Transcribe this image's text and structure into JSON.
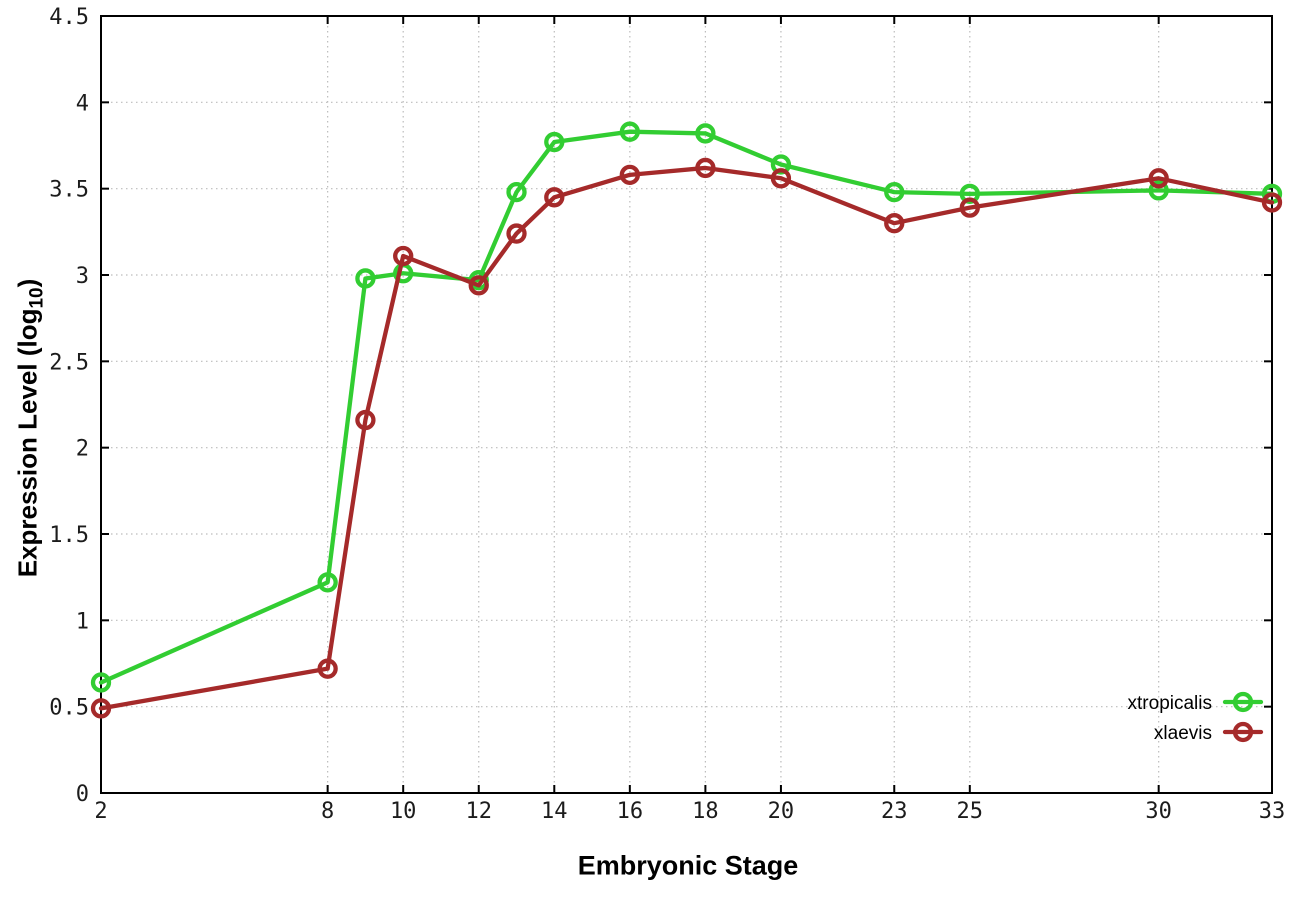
{
  "chart_data": {
    "type": "line",
    "title": "",
    "xlabel": "Embryonic Stage",
    "ylabel": "Expression Level (log10)",
    "ylabel_parts": {
      "prefix": "Expression Level (log",
      "sub": "10",
      "suffix": ")"
    },
    "xlim": [
      2,
      33
    ],
    "ylim": [
      0,
      4.5
    ],
    "x_tick_positions": [
      2,
      8,
      10,
      12,
      14,
      16,
      18,
      20,
      23,
      25,
      30,
      33
    ],
    "x_tick_labels": [
      "2",
      "8",
      "10",
      "12",
      "14",
      "16",
      "18",
      "20",
      "23",
      "25",
      "30",
      "33"
    ],
    "y_tick_positions": [
      0,
      0.5,
      1,
      1.5,
      2,
      2.5,
      3,
      3.5,
      4,
      4.5
    ],
    "y_tick_labels": [
      "0",
      "0.5",
      "1",
      "1.5",
      "2",
      "2.5",
      "3",
      "3.5",
      "4",
      "4.5"
    ],
    "grid": {
      "visible": true,
      "style": "dotted",
      "color": "#bcbcbc"
    },
    "axis_color": "#000000",
    "tick_label_color": "#1c1c1c",
    "x": [
      2,
      8,
      9,
      10,
      12,
      13,
      14,
      16,
      18,
      20,
      23,
      25,
      30,
      33
    ],
    "series": [
      {
        "name": "xtropicalis",
        "color": "#32cd32",
        "values": [
          0.64,
          1.22,
          2.98,
          3.01,
          2.97,
          3.48,
          3.77,
          3.83,
          3.82,
          3.64,
          3.48,
          3.47,
          3.49,
          3.47
        ]
      },
      {
        "name": "xlaevis",
        "color": "#a52a2a",
        "values": [
          0.49,
          0.72,
          2.16,
          3.11,
          2.94,
          3.24,
          3.45,
          3.58,
          3.62,
          3.56,
          3.3,
          3.39,
          3.56,
          3.42
        ]
      }
    ],
    "legend": {
      "position": "inside-bottom-right",
      "entries": [
        "xtropicalis",
        "xlaevis"
      ]
    }
  }
}
